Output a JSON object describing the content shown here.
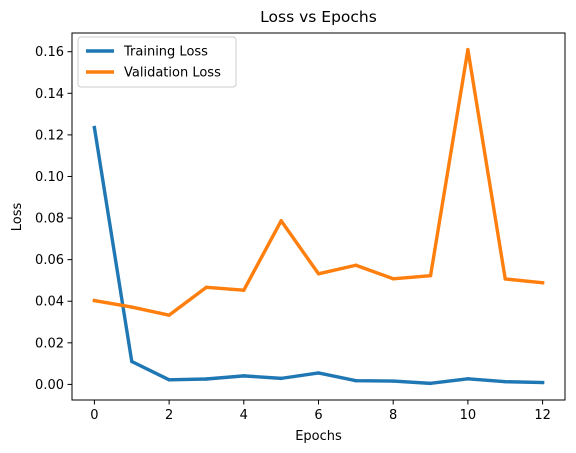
{
  "chart_data": {
    "type": "line",
    "title": "Loss vs Epochs",
    "xlabel": "Epochs",
    "ylabel": "Loss",
    "x": [
      0,
      1,
      2,
      3,
      4,
      5,
      6,
      7,
      8,
      9,
      10,
      11,
      12
    ],
    "xlim": [
      -0.6,
      12.6
    ],
    "ylim": [
      -0.0075,
      0.169
    ],
    "xticks": [
      0,
      2,
      4,
      6,
      8,
      10,
      12
    ],
    "xtick_labels": [
      "0",
      "2",
      "4",
      "6",
      "8",
      "10",
      "12"
    ],
    "yticks": [
      0.0,
      0.02,
      0.04,
      0.06,
      0.08,
      0.1,
      0.12,
      0.14,
      0.16
    ],
    "ytick_labels": [
      "0.00",
      "0.02",
      "0.04",
      "0.06",
      "0.08",
      "0.10",
      "0.12",
      "0.14",
      "0.16"
    ],
    "grid": false,
    "legend_position": "upper-left",
    "series": [
      {
        "name": "Training Loss",
        "color": "#1f77b4",
        "values": [
          0.1235,
          0.011,
          0.0022,
          0.0026,
          0.0041,
          0.0029,
          0.0055,
          0.0018,
          0.0016,
          0.0005,
          0.0027,
          0.0013,
          0.0009
        ]
      },
      {
        "name": "Validation Loss",
        "color": "#ff7f0e",
        "values": [
          0.0403,
          0.0372,
          0.0333,
          0.0467,
          0.0453,
          0.0787,
          0.0532,
          0.0573,
          0.0508,
          0.0523,
          0.161,
          0.0507,
          0.0489
        ]
      }
    ]
  }
}
